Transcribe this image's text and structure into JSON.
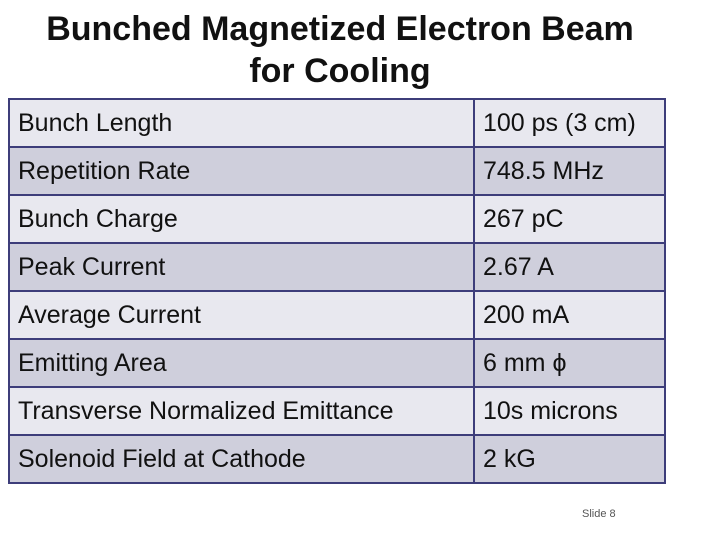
{
  "slide": {
    "title_line1": "Bunched Magnetized Electron Beam",
    "title_line2": "for Cooling",
    "rows": [
      {
        "label": "Bunch Length",
        "value": "100 ps (3 cm)"
      },
      {
        "label": "Repetition Rate",
        "value": "748.5 MHz"
      },
      {
        "label": "Bunch Charge",
        "value": "267 pC"
      },
      {
        "label": "Peak Current",
        "value": "2.67 A"
      },
      {
        "label": "Average Current",
        "value": "200 mA"
      },
      {
        "label": "Emitting Area",
        "value": "6 mm ϕ"
      },
      {
        "label": "Transverse Normalized Emittance",
        "value": "10s microns"
      },
      {
        "label": "Solenoid Field at Cathode",
        "value": "2 kG"
      }
    ],
    "footer": "Slide 8"
  }
}
